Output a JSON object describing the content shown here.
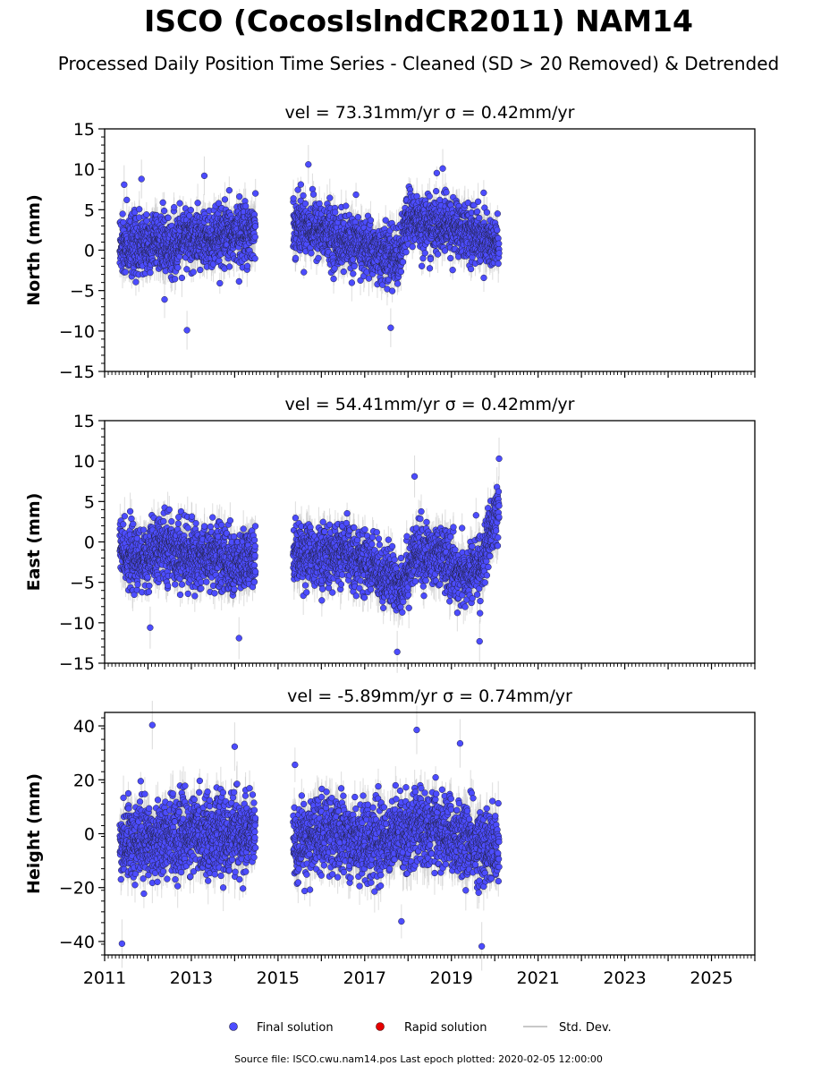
{
  "figure": {
    "title": "ISCO (CocosIslndCR2011) NAM14",
    "subtitle": "Processed Daily Position Time Series - Cleaned (SD > 20 Removed) & Detrended",
    "source": "Source file: ISCO.cwu.nam14.pos  Last epoch plotted: 2020-02-05 12:00:00"
  },
  "legend": {
    "final": "Final solution",
    "rapid": "Rapid solution",
    "std": "Std. Dev."
  },
  "colors": {
    "final": "#4c4cff",
    "rapid": "#e60000",
    "std": "#c8c8c8",
    "marker_edge": "#222244"
  },
  "chart_data": [
    {
      "type": "scatter",
      "panel_title": "vel = 73.31mm/yr   σ = 0.42mm/yr",
      "ylabel": "North (mm)",
      "xlim": [
        2011,
        2026
      ],
      "ylim": [
        -15,
        15
      ],
      "yticks": [
        -15,
        -10,
        -5,
        0,
        5,
        10,
        15
      ],
      "yticklabels": [
        "−15",
        "−10",
        "−5",
        "0",
        "5",
        "10",
        "15"
      ],
      "xticks": [
        2011,
        2013,
        2015,
        2017,
        2019,
        2021,
        2023,
        2025
      ],
      "segments": [
        {
          "x": [
            2011.35,
            2012.0,
            2012.5,
            2013.0,
            2013.5,
            2014.0,
            2014.48
          ],
          "y": [
            0.5,
            0.8,
            0.4,
            1.5,
            1.0,
            2.0,
            2.5
          ],
          "scatter_sd": 2.5
        },
        {
          "x": [
            2015.35,
            2016.0,
            2016.5,
            2017.0,
            2017.4,
            2017.8,
            2018.0,
            2018.5,
            2019.0,
            2019.5,
            2020.1
          ],
          "y": [
            3.5,
            2.5,
            1.0,
            0.5,
            -0.5,
            -1.0,
            4.0,
            3.0,
            3.0,
            2.0,
            0.5
          ],
          "scatter_sd": 2.4
        }
      ],
      "outliers": [
        [
          2011.45,
          8.1
        ],
        [
          2011.85,
          8.8
        ],
        [
          2012.9,
          -9.9
        ],
        [
          2013.3,
          9.2
        ],
        [
          2015.7,
          10.6
        ],
        [
          2017.6,
          -9.6
        ],
        [
          2018.8,
          10.1
        ]
      ],
      "sd_range": [
        0.8,
        2.4
      ],
      "n_points": [
        1150,
        1620
      ]
    },
    {
      "type": "scatter",
      "panel_title": "vel = 54.41mm/yr   σ = 0.42mm/yr",
      "ylabel": "East (mm)",
      "xlim": [
        2011,
        2026
      ],
      "ylim": [
        -15,
        15
      ],
      "yticks": [
        -15,
        -10,
        -5,
        0,
        5,
        10,
        15
      ],
      "yticklabels": [
        "−15",
        "−10",
        "−5",
        "0",
        "5",
        "10",
        "15"
      ],
      "xticks": [
        2011,
        2013,
        2015,
        2017,
        2019,
        2021,
        2023,
        2025
      ],
      "segments": [
        {
          "x": [
            2011.35,
            2011.8,
            2012.4,
            2013.0,
            2013.6,
            2014.0,
            2014.48
          ],
          "y": [
            -1.0,
            -2.5,
            -0.5,
            -2.0,
            -1.5,
            -3.0,
            -2.0
          ],
          "scatter_sd": 2.6
        },
        {
          "x": [
            2015.35,
            2016.0,
            2016.6,
            2017.2,
            2017.8,
            2018.2,
            2018.8,
            2019.3,
            2019.7,
            2020.1
          ],
          "y": [
            -1.0,
            -2.0,
            -1.5,
            -3.0,
            -5.5,
            -1.5,
            -2.0,
            -4.5,
            -2.5,
            4.0
          ],
          "scatter_sd": 2.5
        }
      ],
      "outliers": [
        [
          2012.05,
          -10.6
        ],
        [
          2014.1,
          -11.9
        ],
        [
          2017.75,
          -13.6
        ],
        [
          2018.15,
          8.1
        ],
        [
          2019.65,
          -12.3
        ],
        [
          2020.1,
          10.3
        ]
      ],
      "sd_range": [
        0.9,
        2.6
      ],
      "n_points": [
        1150,
        1620
      ]
    },
    {
      "type": "scatter",
      "panel_title": "vel = -5.89mm/yr   σ = 0.74mm/yr",
      "ylabel": "Height (mm)",
      "xlim": [
        2011,
        2026
      ],
      "ylim": [
        -45,
        45
      ],
      "yticks": [
        -40,
        -20,
        0,
        20,
        40
      ],
      "yticklabels": [
        "−40",
        "−20",
        "0",
        "20",
        "40"
      ],
      "xticks": [
        2011,
        2013,
        2015,
        2017,
        2019,
        2021,
        2023,
        2025
      ],
      "xticklabels": [
        "2011",
        "2013",
        "2015",
        "2017",
        "2019",
        "2021",
        "2023",
        "2025"
      ],
      "segments": [
        {
          "x": [
            2011.35,
            2012.0,
            2012.6,
            2013.2,
            2013.8,
            2014.48
          ],
          "y": [
            -3.0,
            -2.0,
            -1.0,
            0.0,
            -1.0,
            0.0
          ],
          "scatter_sd": 9.5
        },
        {
          "x": [
            2015.35,
            2016.0,
            2016.6,
            2017.2,
            2017.8,
            2018.3,
            2018.9,
            2019.5,
            2020.1
          ],
          "y": [
            -4.0,
            0.0,
            -1.0,
            -3.0,
            0.0,
            3.0,
            0.0,
            -4.0,
            -6.0
          ],
          "scatter_sd": 9.5
        }
      ],
      "outliers": [
        [
          2011.4,
          -40.8
        ],
        [
          2012.1,
          40.3
        ],
        [
          2014.0,
          32.3
        ],
        [
          2018.2,
          38.5
        ],
        [
          2019.7,
          -41.8
        ],
        [
          2019.2,
          33.5
        ]
      ],
      "sd_range": [
        3.0,
        9.0
      ],
      "n_points": [
        1150,
        1620
      ]
    }
  ]
}
